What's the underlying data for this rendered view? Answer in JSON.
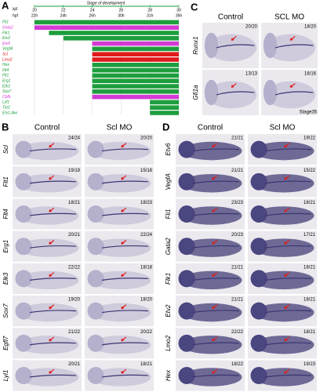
{
  "panel_a": {
    "label": "A",
    "axis_title": "Stage of development",
    "nf_label": "NF",
    "hpf_label": "hpf",
    "xlim": [
      20,
      30
    ],
    "nf_ticks": [
      20,
      22,
      24,
      26,
      28,
      30
    ],
    "hpf_ticks": [
      "22h",
      "24h",
      "26h",
      "30h",
      "31h",
      "35h"
    ],
    "genes": [
      {
        "name": "Fli1",
        "color": "#1e9e3e",
        "start": 20
      },
      {
        "name": "Gata2",
        "color": "#d43ad4",
        "start": 20
      },
      {
        "name": "Flk1",
        "color": "#1e9e3e",
        "start": 21
      },
      {
        "name": "Etv2",
        "color": "#1e9e3e",
        "start": 22
      },
      {
        "name": "Etv6",
        "color": "#d43ad4",
        "start": 24
      },
      {
        "name": "VegfA",
        "color": "#1e9e3e",
        "start": 24
      },
      {
        "name": "Scl",
        "color": "#e01b1b",
        "start": 24
      },
      {
        "name": "Lmo2",
        "color": "#e01b1b",
        "start": 24
      },
      {
        "name": "Hex",
        "color": "#1e9e3e",
        "start": 24
      },
      {
        "name": "Flt4",
        "color": "#1e9e3e",
        "start": 24
      },
      {
        "name": "Flt1",
        "color": "#1e9e3e",
        "start": 24
      },
      {
        "name": "Erg1",
        "color": "#1e9e3e",
        "start": 24
      },
      {
        "name": "Elk3",
        "color": "#1e9e3e",
        "start": 24
      },
      {
        "name": "Sox7",
        "color": "#1e9e3e",
        "start": 24
      },
      {
        "name": "Cbfb",
        "color": "#d43ad4",
        "start": 24
      },
      {
        "name": "Lyl1",
        "color": "#1e9e3e",
        "start": 28
      },
      {
        "name": "Tie2",
        "color": "#1e9e3e",
        "start": 28
      },
      {
        "name": "Etv1-like",
        "color": "#1e9e3e",
        "start": 28
      }
    ]
  },
  "panel_b": {
    "label": "B",
    "columns": [
      "Control",
      "Scl MO"
    ],
    "rows": [
      {
        "gene": "Scl",
        "counts": [
          "24/24",
          "20/20"
        ]
      },
      {
        "gene": "Flt1",
        "counts": [
          "19/19",
          "15/18"
        ]
      },
      {
        "gene": "Flt4",
        "counts": [
          "18/21",
          "18/23"
        ]
      },
      {
        "gene": "Erg1",
        "counts": [
          "20/21",
          "22/24"
        ]
      },
      {
        "gene": "Elk3",
        "counts": [
          "22/22",
          "18/18"
        ]
      },
      {
        "gene": "Sox7",
        "counts": [
          "19/20",
          "18/20"
        ]
      },
      {
        "gene": "Egfl7",
        "counts": [
          "21/22",
          "20/22"
        ]
      },
      {
        "gene": "Lyl1",
        "counts": [
          "20/21",
          "18/21"
        ]
      }
    ]
  },
  "panel_c": {
    "label": "C",
    "columns": [
      "Control",
      "SCL MO"
    ],
    "note": "Stage35",
    "rows": [
      {
        "gene": "Runx1",
        "counts": [
          "20/20",
          "18/20"
        ]
      },
      {
        "gene": "Gfi1a",
        "counts": [
          "13/13",
          "16/16"
        ]
      }
    ]
  },
  "panel_d": {
    "label": "D",
    "columns": [
      "Control",
      "Scl MO"
    ],
    "rows": [
      {
        "gene": "Etv6",
        "counts": [
          "21/21",
          "19/22"
        ]
      },
      {
        "gene": "VegfA",
        "counts": [
          "21/21",
          "15/22"
        ]
      },
      {
        "gene": "Fli1",
        "counts": [
          "23/23",
          "18/21"
        ]
      },
      {
        "gene": "Gata2",
        "counts": [
          "20/23",
          "17/21"
        ]
      },
      {
        "gene": "Flk1",
        "counts": [
          "21/21",
          "18/21"
        ]
      },
      {
        "gene": "Etv2",
        "counts": [
          "21/21",
          "18/21"
        ]
      },
      {
        "gene": "Lmo2",
        "counts": [
          "22/22",
          "18/21"
        ]
      },
      {
        "gene": "Hex",
        "counts": [
          "18/22",
          "19/23"
        ]
      }
    ]
  }
}
